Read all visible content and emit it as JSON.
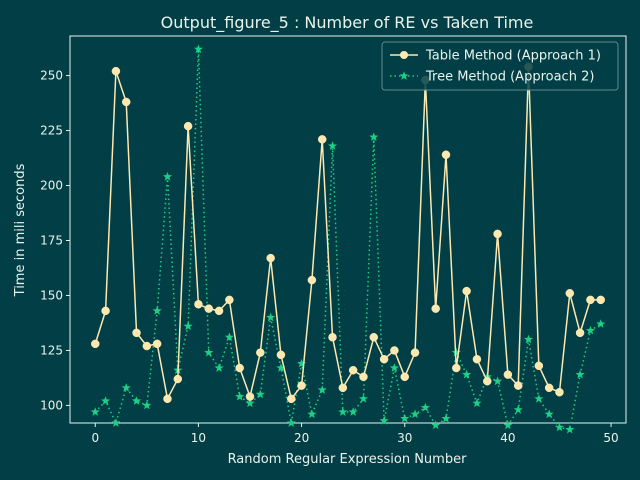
{
  "chart_data": {
    "type": "line",
    "title": "Output_figure_5 : Number of RE vs Taken Time",
    "xlabel": "Random Regular Expression Number",
    "ylabel": "Time in mili seconds",
    "xlim": [
      -2.45,
      51.45
    ],
    "ylim": [
      92,
      268
    ],
    "xticks": [
      0,
      10,
      20,
      30,
      40,
      50
    ],
    "yticks": [
      100,
      125,
      150,
      175,
      200,
      225,
      250
    ],
    "grid": false,
    "legend_position": "top-right",
    "x": [
      0,
      1,
      2,
      3,
      4,
      5,
      6,
      7,
      8,
      9,
      10,
      11,
      12,
      13,
      14,
      15,
      16,
      17,
      18,
      19,
      20,
      21,
      22,
      23,
      24,
      25,
      26,
      27,
      28,
      29,
      30,
      31,
      32,
      33,
      34,
      35,
      36,
      37,
      38,
      39,
      40,
      41,
      42,
      43,
      44,
      45,
      46,
      47,
      48,
      49
    ],
    "series": [
      {
        "name": "Table Method (Approach 1)",
        "color": "#fde9b0",
        "linestyle": "solid",
        "marker": "circle",
        "values": [
          128,
          143,
          252,
          238,
          133,
          127,
          128,
          103,
          112,
          227,
          146,
          144,
          143,
          148,
          117,
          104,
          124,
          167,
          123,
          103,
          109,
          157,
          221,
          131,
          108,
          116,
          113,
          131,
          121,
          125,
          113,
          124,
          248,
          144,
          214,
          117,
          152,
          121,
          111,
          178,
          114,
          109,
          254,
          118,
          108,
          106,
          151,
          133,
          148,
          148
        ]
      },
      {
        "name": "Tree Method (Approach 2)",
        "color": "#1ecf86",
        "linestyle": "dotted",
        "marker": "star",
        "values": [
          97,
          102,
          92,
          108,
          102,
          100,
          143,
          204,
          116,
          136,
          262,
          124,
          117,
          131,
          104,
          101,
          105,
          140,
          117,
          92,
          119,
          96,
          107,
          218,
          97,
          97,
          103,
          222,
          93,
          117,
          94,
          96,
          99,
          91,
          94,
          124,
          114,
          101,
          113,
          111,
          91,
          98,
          130,
          103,
          96,
          90,
          89,
          114,
          134,
          137
        ]
      }
    ]
  }
}
